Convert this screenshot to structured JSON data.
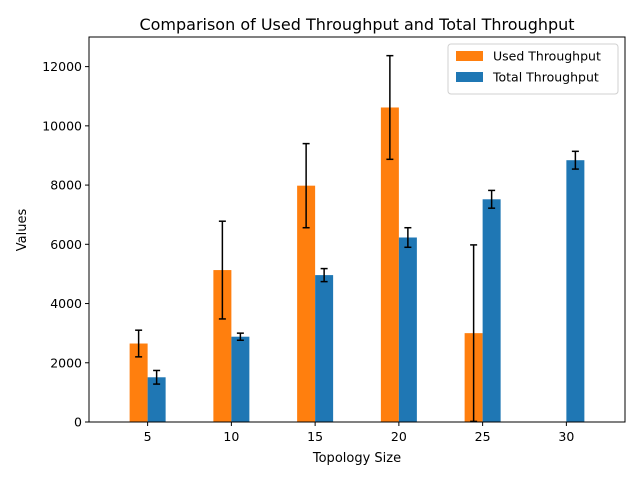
{
  "chart_data": {
    "type": "bar",
    "title": "Comparison of Used Throughput and Total Throughput",
    "xlabel": "Topology Size",
    "ylabel": "Values",
    "categories": [
      "5",
      "10",
      "15",
      "20",
      "25",
      "30"
    ],
    "ylim": [
      0,
      13000
    ],
    "yticks": [
      0,
      2000,
      4000,
      6000,
      8000,
      10000,
      12000
    ],
    "legend_position": "top-right",
    "grid": false,
    "series": [
      {
        "name": "Used Throughput",
        "color": "#ff7f0e",
        "values": [
          2650,
          5130,
          7980,
          10620,
          3000,
          0
        ],
        "errors": [
          450,
          1650,
          1420,
          1750,
          2980,
          0
        ]
      },
      {
        "name": "Total Throughput",
        "color": "#1f77b4",
        "values": [
          1510,
          2880,
          4960,
          6230,
          7520,
          8840
        ],
        "errors": [
          230,
          120,
          220,
          330,
          300,
          300
        ]
      }
    ]
  }
}
